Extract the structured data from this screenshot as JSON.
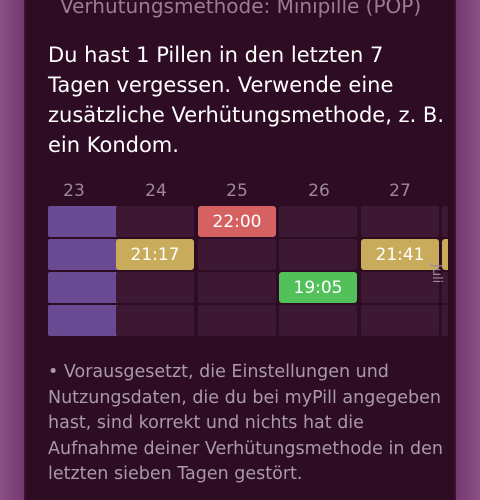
{
  "header": {
    "method_title": "Verhütungsmethode: Minipille (POP)"
  },
  "warning": {
    "text": "Du hast 1 Pillen in den letzten 7 Tagen vergessen. Verwende eine zusätzliche Verhütungsmethode, z. B. ein Kondom."
  },
  "calendar": {
    "days": [
      "23",
      "24",
      "25",
      "26",
      "27"
    ],
    "entries": [
      {
        "day": "25",
        "time": "22:00",
        "status": "red"
      },
      {
        "day": "24",
        "time": "21:17",
        "status": "yellow"
      },
      {
        "day": "27",
        "time": "21:41",
        "status": "yellow"
      },
      {
        "day": "26",
        "time": "19:05",
        "status": "green"
      }
    ],
    "side_tab_label": "Juli"
  },
  "colors": {
    "red": "#d56161",
    "yellow": "#c8ac5c",
    "green": "#52c15a",
    "highlight_day": "#6a4a93"
  },
  "footnote": {
    "text": "• Vorausgesetzt, die Einstellungen und Nutzungsdaten, die du bei myPill angegeben hast, sind korrekt und nichts hat die Aufnahme deiner Verhütungsmethode in den letzten sieben Tagen gestört."
  }
}
